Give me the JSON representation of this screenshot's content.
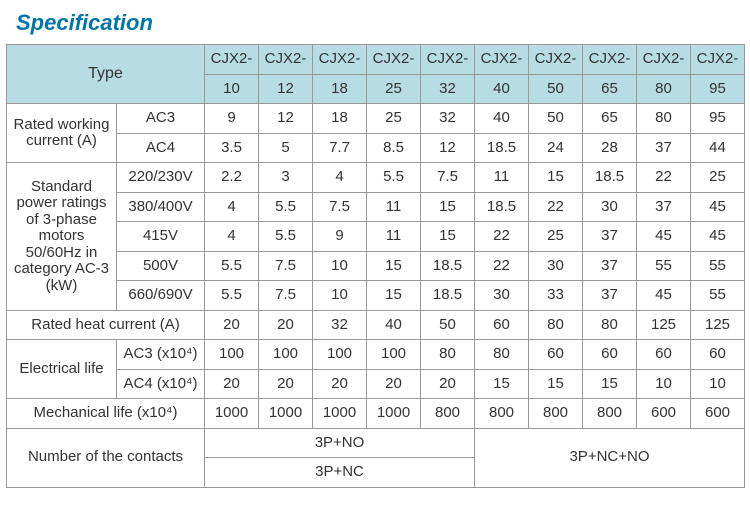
{
  "title": "Specification",
  "colors": {
    "title": "#0077aa",
    "header_bg": "#b7dce4",
    "border": "#999999",
    "text": "#333333",
    "background": "#ffffff"
  },
  "header": {
    "type_label": "Type",
    "models": [
      "CJX2-10",
      "CJX2-12",
      "CJX2-18",
      "CJX2-25",
      "CJX2-32",
      "CJX2-40",
      "CJX2-50",
      "CJX2-65",
      "CJX2-80",
      "CJX2-95"
    ]
  },
  "rows": {
    "rated_working_current": {
      "label": "Rated working current (A)",
      "sub": [
        {
          "label": "AC3",
          "values": [
            "9",
            "12",
            "18",
            "25",
            "32",
            "40",
            "50",
            "65",
            "80",
            "95"
          ]
        },
        {
          "label": "AC4",
          "values": [
            "3.5",
            "5",
            "7.7",
            "8.5",
            "12",
            "18.5",
            "24",
            "28",
            "37",
            "44"
          ]
        }
      ]
    },
    "power_ratings": {
      "label": "Standard power ratings of 3-phase motors 50/60Hz in category AC-3 (kW)",
      "sub": [
        {
          "label": "220/230V",
          "values": [
            "2.2",
            "3",
            "4",
            "5.5",
            "7.5",
            "11",
            "15",
            "18.5",
            "22",
            "25"
          ]
        },
        {
          "label": "380/400V",
          "values": [
            "4",
            "5.5",
            "7.5",
            "11",
            "15",
            "18.5",
            "22",
            "30",
            "37",
            "45"
          ]
        },
        {
          "label": "415V",
          "values": [
            "4",
            "5.5",
            "9",
            "11",
            "15",
            "22",
            "25",
            "37",
            "45",
            "45"
          ]
        },
        {
          "label": "500V",
          "values": [
            "5.5",
            "7.5",
            "10",
            "15",
            "18.5",
            "22",
            "30",
            "37",
            "55",
            "55"
          ]
        },
        {
          "label": "660/690V",
          "values": [
            "5.5",
            "7.5",
            "10",
            "15",
            "18.5",
            "30",
            "33",
            "37",
            "45",
            "55"
          ]
        }
      ]
    },
    "rated_heat_current": {
      "label": "Rated heat current (A)",
      "values": [
        "20",
        "20",
        "32",
        "40",
        "50",
        "60",
        "80",
        "80",
        "125",
        "125"
      ]
    },
    "electrical_life": {
      "label": "Electrical life",
      "sub": [
        {
          "label": "AC3 (x10⁴)",
          "values": [
            "100",
            "100",
            "100",
            "100",
            "80",
            "80",
            "60",
            "60",
            "60",
            "60"
          ]
        },
        {
          "label": "AC4 (x10⁴)",
          "values": [
            "20",
            "20",
            "20",
            "20",
            "20",
            "15",
            "15",
            "15",
            "10",
            "10"
          ]
        }
      ]
    },
    "mechanical_life": {
      "label": "Mechanical life (x10⁴)",
      "values": [
        "1000",
        "1000",
        "1000",
        "1000",
        "800",
        "800",
        "800",
        "800",
        "600",
        "600"
      ]
    },
    "contacts": {
      "label": "Number of the contacts",
      "left_top": "3P+NO",
      "left_bottom": "3P+NC",
      "right": "3P+NC+NO"
    }
  }
}
